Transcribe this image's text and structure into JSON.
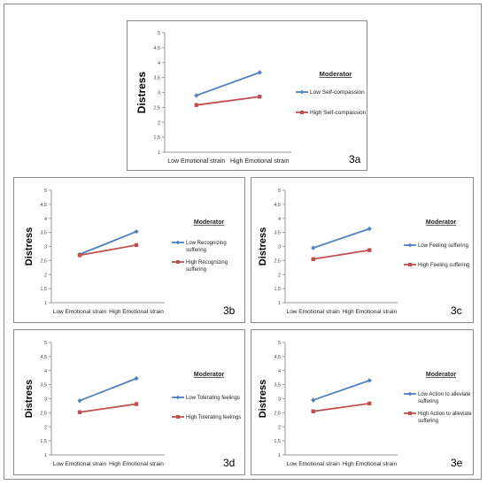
{
  "colors": {
    "low": "#4f81bd",
    "high": "#c0504d",
    "axis": "#999999"
  },
  "chart_data": [
    {
      "id": "a",
      "type": "line",
      "panel_label": "3a",
      "ylabel": "Distress",
      "ylim": [
        1,
        5
      ],
      "yticks": [
        "1",
        "1,5",
        "2",
        "2,5",
        "3",
        "3,5",
        "4",
        "4,5",
        "5"
      ],
      "categories": [
        "Low Emotional strain",
        "High Emotional strain"
      ],
      "legend_title": "Moderator",
      "series": [
        {
          "name": "Low Self-compassion",
          "name_lines": [
            "Low Self-compassion"
          ],
          "color": "#4f81bd",
          "marker": "diamond",
          "values": [
            2.9,
            3.67
          ]
        },
        {
          "name": "High Self-compassion",
          "name_lines": [
            "High Self-compassion"
          ],
          "color": "#c0504d",
          "marker": "square",
          "values": [
            2.58,
            2.86
          ]
        }
      ]
    },
    {
      "id": "b",
      "type": "line",
      "panel_label": "3b",
      "ylabel": "Distress",
      "ylim": [
        1,
        5
      ],
      "yticks": [
        "1",
        "1,5",
        "2",
        "2,5",
        "3",
        "3,5",
        "4",
        "4,5",
        "5"
      ],
      "categories": [
        "Low Emotional strain",
        "High Emotional strain"
      ],
      "legend_title": "Moderator",
      "series": [
        {
          "name": "Low Recognizing suffering",
          "name_lines": [
            "Low Recognizing",
            "suffering"
          ],
          "color": "#4f81bd",
          "marker": "diamond",
          "values": [
            2.72,
            3.53
          ]
        },
        {
          "name": "High Recognizing suffering",
          "name_lines": [
            "High Recognizing",
            "suffering"
          ],
          "color": "#c0504d",
          "marker": "square",
          "values": [
            2.69,
            3.05
          ]
        }
      ]
    },
    {
      "id": "c",
      "type": "line",
      "panel_label": "3c",
      "ylabel": "Distress",
      "ylim": [
        1,
        5
      ],
      "yticks": [
        "1",
        "1,5",
        "2",
        "2,5",
        "3",
        "3,5",
        "4",
        "4,5",
        "5"
      ],
      "categories": [
        "Low Emotional strain",
        "High Emotional strain"
      ],
      "legend_title": "Moderator",
      "series": [
        {
          "name": "Low Feeling suffering",
          "name_lines": [
            "Low Feeling suffering"
          ],
          "color": "#4f81bd",
          "marker": "diamond",
          "values": [
            2.95,
            3.63
          ]
        },
        {
          "name": "High Feeling suffering",
          "name_lines": [
            "High Feeling suffering"
          ],
          "color": "#c0504d",
          "marker": "square",
          "values": [
            2.55,
            2.87
          ]
        }
      ]
    },
    {
      "id": "d",
      "type": "line",
      "panel_label": "3d",
      "ylabel": "Distress",
      "ylim": [
        1,
        5
      ],
      "yticks": [
        "1",
        "1,5",
        "2",
        "2,5",
        "3",
        "3,5",
        "4",
        "4,5",
        "5"
      ],
      "categories": [
        "Low Emotional strain",
        "High Emotional strain"
      ],
      "legend_title": "Moderator",
      "series": [
        {
          "name": "Low Tolerating feelings",
          "name_lines": [
            "Low Tolerating feelings"
          ],
          "color": "#4f81bd",
          "marker": "diamond",
          "values": [
            2.93,
            3.72
          ]
        },
        {
          "name": "High Tolerating feelings",
          "name_lines": [
            "High Tolerating feelings"
          ],
          "color": "#c0504d",
          "marker": "square",
          "values": [
            2.52,
            2.81
          ]
        }
      ]
    },
    {
      "id": "e",
      "type": "line",
      "panel_label": "3e",
      "ylabel": "Distress",
      "ylim": [
        1,
        5
      ],
      "yticks": [
        "1",
        "1,5",
        "2",
        "2,5",
        "3",
        "3,5",
        "4",
        "4,5",
        "5"
      ],
      "categories": [
        "Low Emotional strain",
        "High Emotional strain"
      ],
      "legend_title": "Moderator",
      "series": [
        {
          "name": "Low Action to alleviate suffering",
          "name_lines": [
            "Low Action to alleviate",
            "suffering"
          ],
          "color": "#4f81bd",
          "marker": "diamond",
          "values": [
            2.95,
            3.65
          ]
        },
        {
          "name": "High Action to alleviate suffering",
          "name_lines": [
            "High Action to alleviate",
            "suffering"
          ],
          "color": "#c0504d",
          "marker": "square",
          "values": [
            2.55,
            2.83
          ]
        }
      ]
    }
  ]
}
